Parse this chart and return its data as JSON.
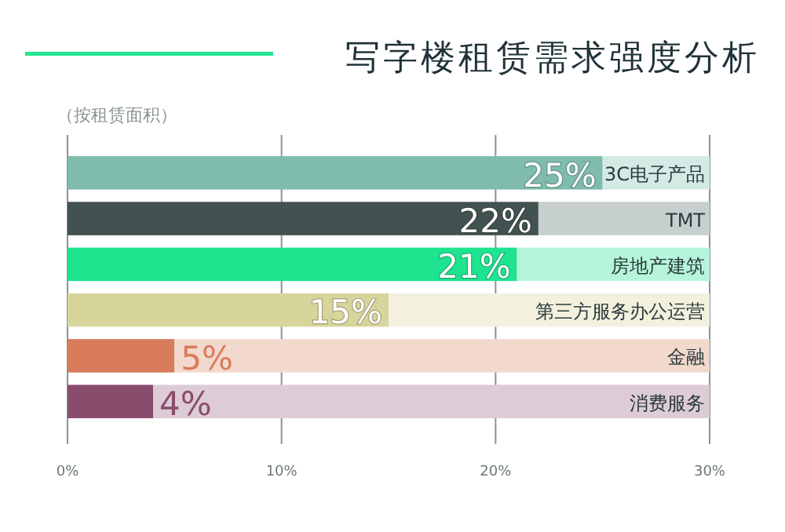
{
  "chart_data": {
    "type": "bar",
    "orientation": "horizontal",
    "stacked": true,
    "title": "写字楼租赁需求强度分析",
    "subtitle": "（按租赁面积）",
    "categories": [
      "3C电子产品",
      "TMT",
      "房地产建筑",
      "第三方服务办公运营",
      "金融",
      "消费服务"
    ],
    "series": [
      {
        "colors": [
          "#7fbcad",
          "#425250",
          "#1ee38f",
          "#d8d59c",
          "#d97c5c",
          "#8a4c6c"
        ],
        "values": [
          25,
          22,
          21,
          15,
          5,
          4
        ],
        "value_labels": [
          "25%",
          "22%",
          "21%",
          "15%",
          "5%",
          "4%"
        ]
      },
      {
        "colors": [
          "#d3ebe4",
          "#c8cfcf",
          "#b6f5da",
          "#f3f1de",
          "#f2d8cd",
          "#ddcbd6"
        ],
        "values": [
          5,
          8,
          9,
          15,
          25,
          26
        ]
      }
    ],
    "xlim": [
      0,
      30
    ],
    "xticks": [
      {
        "value": 0,
        "label": "0%"
      },
      {
        "value": 10,
        "label": "10%"
      },
      {
        "value": 20,
        "label": "20%"
      },
      {
        "value": 30,
        "label": "30%"
      }
    ],
    "grid": "x"
  }
}
